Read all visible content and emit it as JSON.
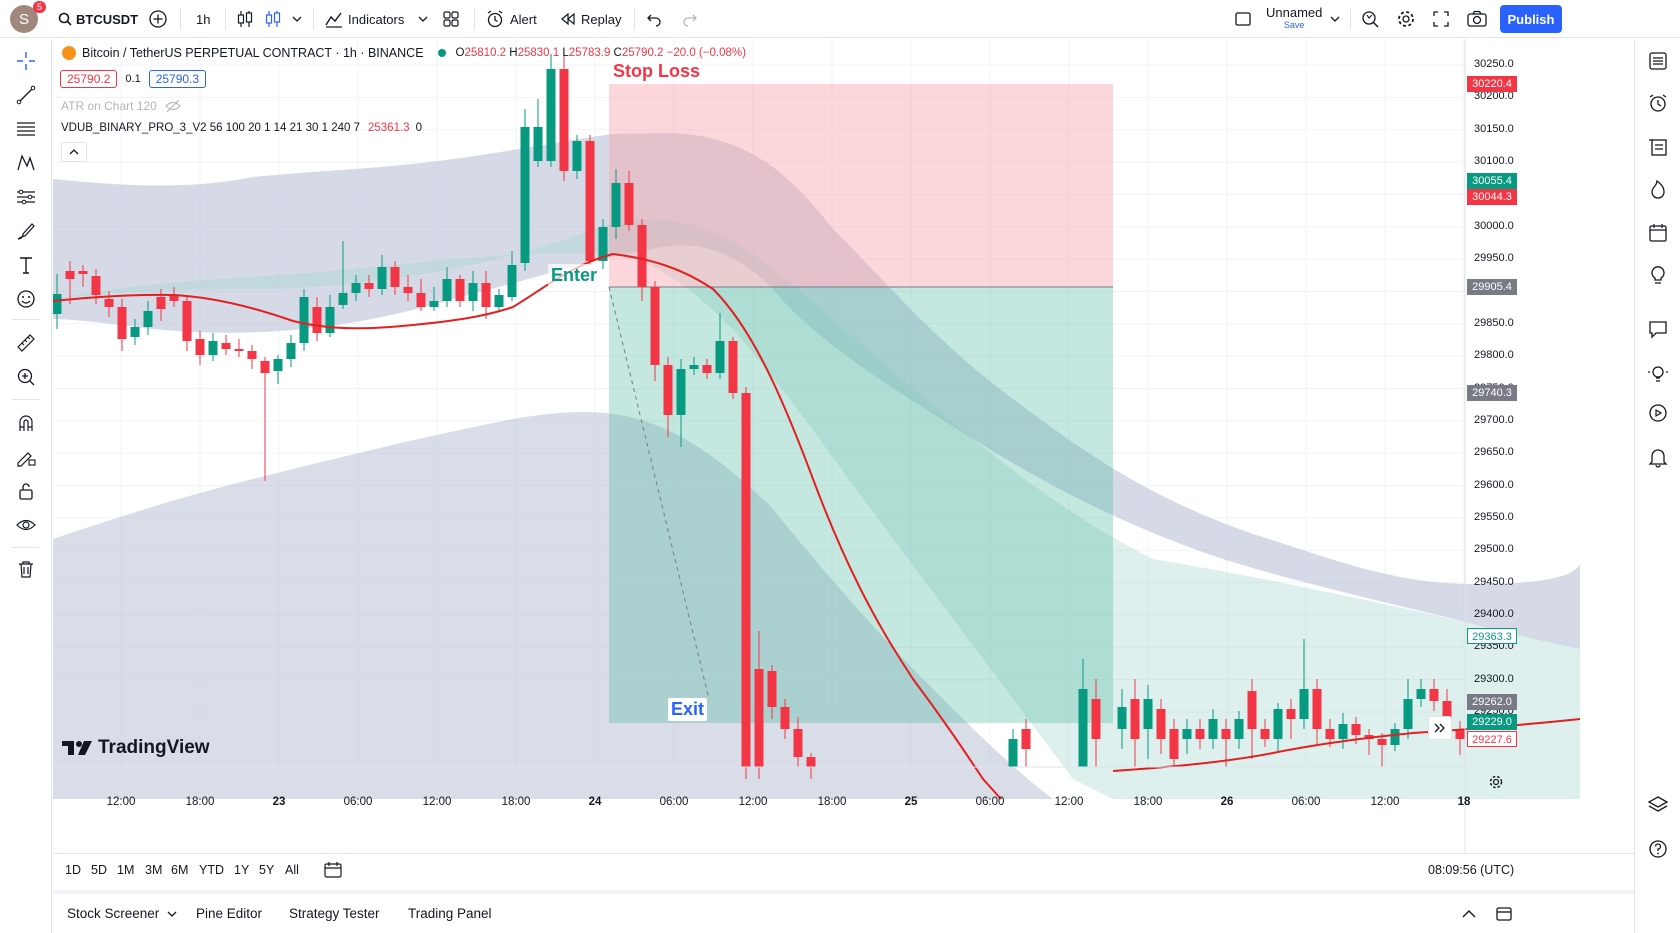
{
  "topbar": {
    "avatar_letter": "S",
    "avatar_badge": "5",
    "symbol": "BTCUSDT",
    "interval": "1h",
    "indicators_label": "Indicators",
    "alert_label": "Alert",
    "replay_label": "Replay",
    "layout_name": "Unnamed",
    "layout_status": "Save",
    "publish_label": "Publish"
  },
  "legend": {
    "title": "Bitcoin / TetherUS PERPETUAL CONTRACT · 1h · BINANCE",
    "o_label": "O",
    "o_value": "25810.2",
    "h_label": "H",
    "h_value": "25830.1",
    "l_label": "L",
    "l_value": "25783.9",
    "c_label": "C",
    "c_value": "25790.2",
    "change": "−20.0 (−0.08%)",
    "sell_price": "25790.2",
    "spread": "0.1",
    "buy_price": "25790.3",
    "atr_label": "ATR on Chart 120",
    "indicator_name": "VDUB_BINARY_PRO_3_V2 56 100 20 1 14 21 30 1 240 7",
    "indicator_value": "25361.3",
    "indicator_extra": "0"
  },
  "chart_labels": {
    "stop_loss": "Stop Loss",
    "enter": "Enter",
    "exit": "Exit"
  },
  "price_scale": {
    "ticks": [
      "30250.0",
      "30200.0",
      "30150.0",
      "30100.0",
      "30050.0",
      "30000.0",
      "29950.0",
      "29900.0",
      "29850.0",
      "29800.0",
      "29750.0",
      "29700.0",
      "29650.0",
      "29600.0",
      "29550.0",
      "29500.0",
      "29450.0",
      "29400.0",
      "29350.0",
      "29300.0",
      "29250.0"
    ],
    "tags": [
      {
        "value": "30220.4",
        "color": "#f23645"
      },
      {
        "value": "30055.4",
        "color": "#089981"
      },
      {
        "value": "30044.3",
        "color": "#f23645"
      },
      {
        "value": "29905.4",
        "color": "#787b86"
      },
      {
        "value": "29740.3",
        "color": "#787b86"
      },
      {
        "value": "29363.3",
        "color": "#ffffff"
      },
      {
        "value": "29262.0",
        "color": "#787b86"
      },
      {
        "value": "29229.0",
        "color": "#089981"
      },
      {
        "value": "29227.6",
        "color": "#ffffff"
      }
    ]
  },
  "time_scale": {
    "ticks": [
      "12:00",
      "18:00",
      "23",
      "06:00",
      "12:00",
      "18:00",
      "24",
      "06:00",
      "12:00",
      "18:00",
      "25",
      "06:00",
      "12:00",
      "18:00",
      "26",
      "06:00",
      "12:00",
      "18"
    ]
  },
  "range_bar": {
    "ranges": [
      "1D",
      "5D",
      "1M",
      "3M",
      "6M",
      "YTD",
      "1Y",
      "5Y",
      "All"
    ],
    "clock": "08:09:56 (UTC)"
  },
  "bottom_bar": {
    "tabs": [
      "Stock Screener",
      "Pine Editor",
      "Strategy Tester",
      "Trading Panel"
    ]
  },
  "watermark": "TradingView",
  "colors": {
    "up": "#089981",
    "down": "#f23645",
    "ema": "#e31f1f",
    "accent": "#2962ff"
  },
  "chart_data": {
    "type": "candlestick",
    "title": "Bitcoin / TetherUS PERPETUAL CONTRACT · 1h · BINANCE",
    "ylim": [
      29180,
      30300
    ],
    "position": {
      "entry": 29905.4,
      "stop_loss": 30220.4,
      "target": 29229.0
    }
  }
}
